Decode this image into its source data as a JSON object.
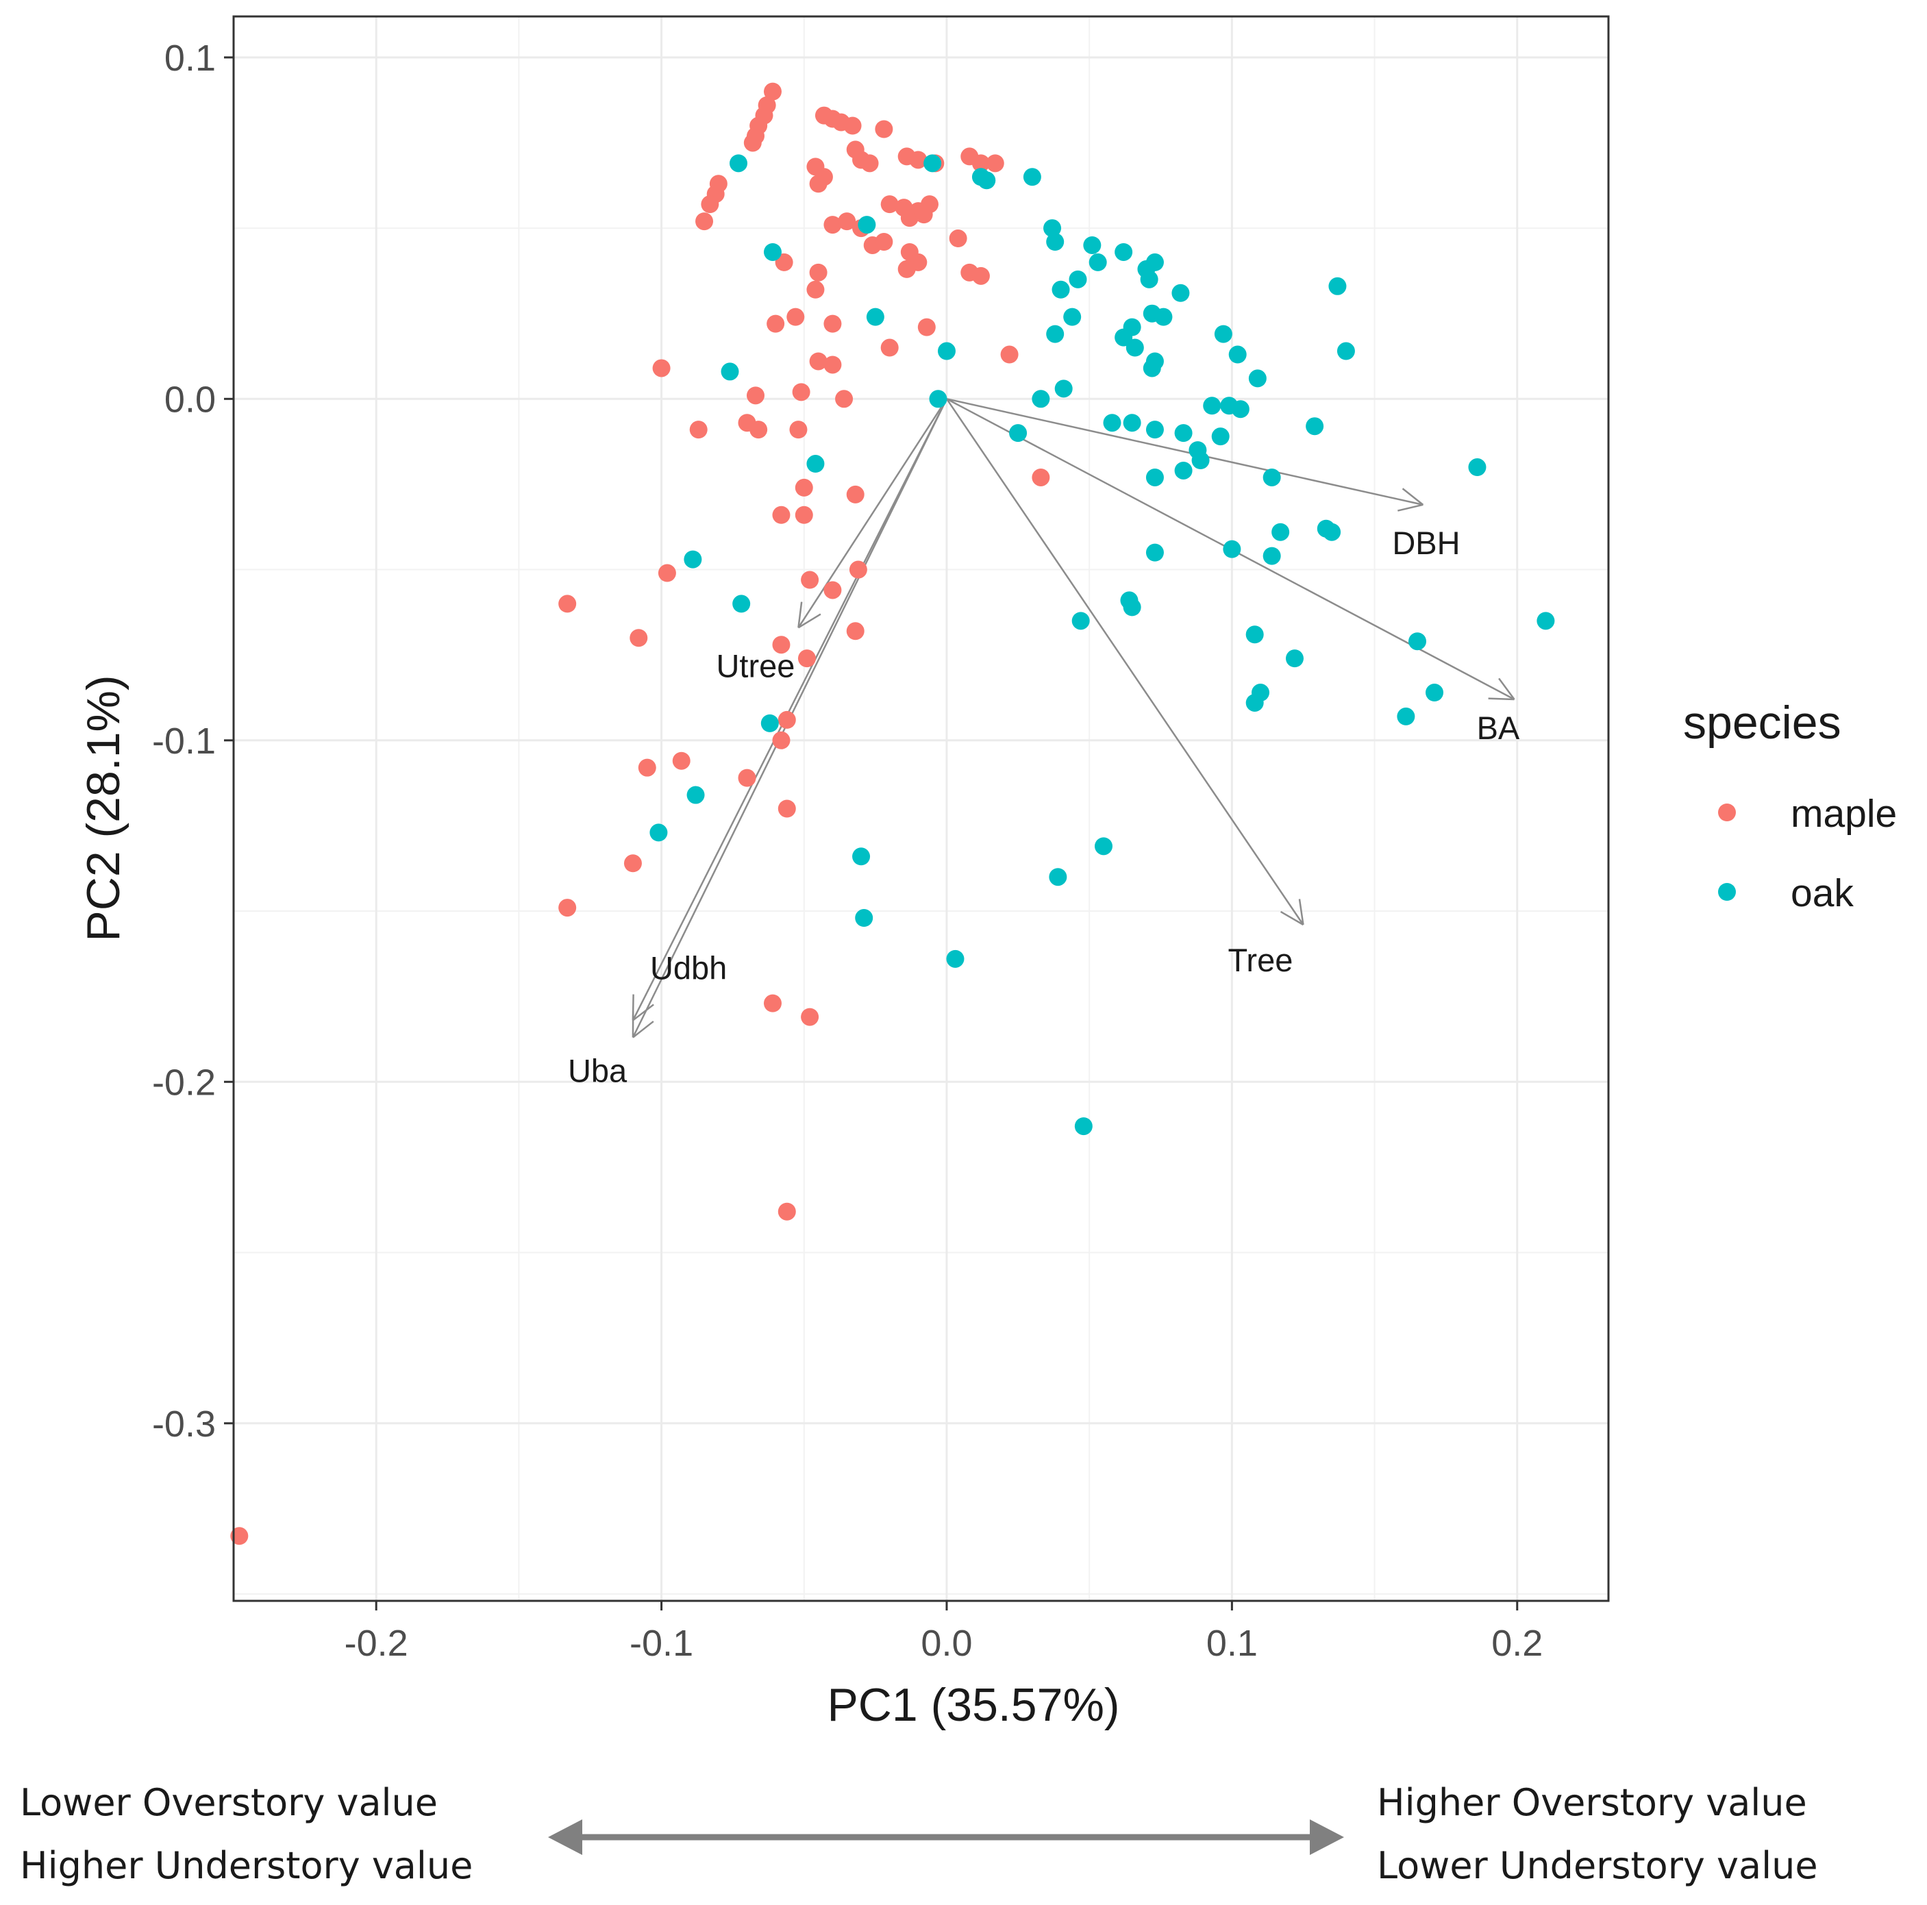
{
  "chart_data": {
    "type": "scatter",
    "subtype": "pca-biplot",
    "xlabel": "PC1 (35.57%)",
    "ylabel": "PC2 (28.1%)",
    "xlim": [
      -0.25,
      0.232
    ],
    "ylim": [
      -0.352,
      0.112
    ],
    "xticks": [
      -0.2,
      -0.1,
      0.0,
      0.1,
      0.2
    ],
    "xtick_labels": [
      "-0.2",
      "-0.1",
      "0.0",
      "0.1",
      "0.2"
    ],
    "yticks": [
      0.1,
      0.0,
      -0.1,
      -0.2,
      -0.3
    ],
    "ytick_labels": [
      "0.1",
      "0.0",
      "-0.1",
      "-0.2",
      "-0.3"
    ],
    "grid": true,
    "legend": {
      "title": "species",
      "placement": "right",
      "entries": [
        {
          "label": "maple",
          "color": "#F8766D"
        },
        {
          "label": "oak",
          "color": "#00BFC4"
        }
      ]
    },
    "series": [
      {
        "name": "maple",
        "color": "#F8766D",
        "points": [
          [
            -0.061,
            0.09
          ],
          [
            -0.063,
            0.086
          ],
          [
            -0.064,
            0.083
          ],
          [
            -0.066,
            0.08
          ],
          [
            -0.067,
            0.077
          ],
          [
            -0.068,
            0.075
          ],
          [
            -0.08,
            0.063
          ],
          [
            -0.081,
            0.06
          ],
          [
            -0.083,
            0.057
          ],
          [
            -0.085,
            0.052
          ],
          [
            -0.043,
            0.083
          ],
          [
            -0.04,
            0.082
          ],
          [
            -0.037,
            0.081
          ],
          [
            -0.033,
            0.08
          ],
          [
            -0.022,
            0.079
          ],
          [
            -0.032,
            0.073
          ],
          [
            -0.03,
            0.07
          ],
          [
            -0.027,
            0.069
          ],
          [
            -0.014,
            0.071
          ],
          [
            -0.01,
            0.07
          ],
          [
            -0.004,
            0.069
          ],
          [
            0.008,
            0.071
          ],
          [
            0.012,
            0.069
          ],
          [
            0.017,
            0.069
          ],
          [
            -0.046,
            0.068
          ],
          [
            -0.043,
            0.065
          ],
          [
            -0.045,
            0.063
          ],
          [
            -0.02,
            0.057
          ],
          [
            -0.015,
            0.056
          ],
          [
            -0.01,
            0.055
          ],
          [
            -0.006,
            0.057
          ],
          [
            -0.013,
            0.053
          ],
          [
            -0.008,
            0.054
          ],
          [
            -0.04,
            0.051
          ],
          [
            -0.035,
            0.052
          ],
          [
            -0.03,
            0.05
          ],
          [
            -0.026,
            0.045
          ],
          [
            -0.022,
            0.046
          ],
          [
            -0.013,
            0.043
          ],
          [
            -0.01,
            0.04
          ],
          [
            -0.014,
            0.038
          ],
          [
            0.004,
            0.047
          ],
          [
            0.008,
            0.037
          ],
          [
            0.012,
            0.036
          ],
          [
            -0.057,
            0.04
          ],
          [
            -0.045,
            0.037
          ],
          [
            -0.046,
            0.032
          ],
          [
            -0.06,
            0.022
          ],
          [
            -0.053,
            0.024
          ],
          [
            -0.04,
            0.022
          ],
          [
            -0.02,
            0.015
          ],
          [
            -0.007,
            0.021
          ],
          [
            0.022,
            0.013
          ],
          [
            -0.045,
            0.011
          ],
          [
            -0.04,
            0.01
          ],
          [
            -0.1,
            0.009
          ],
          [
            -0.067,
            0.001
          ],
          [
            -0.051,
            0.002
          ],
          [
            -0.036,
            0.0
          ],
          [
            -0.087,
            -0.009
          ],
          [
            -0.07,
            -0.007
          ],
          [
            -0.066,
            -0.009
          ],
          [
            -0.052,
            -0.009
          ],
          [
            -0.05,
            -0.026
          ],
          [
            -0.058,
            -0.034
          ],
          [
            -0.05,
            -0.034
          ],
          [
            -0.032,
            -0.028
          ],
          [
            0.033,
            -0.023
          ],
          [
            -0.098,
            -0.051
          ],
          [
            -0.048,
            -0.053
          ],
          [
            -0.04,
            -0.056
          ],
          [
            -0.031,
            -0.05
          ],
          [
            -0.133,
            -0.06
          ],
          [
            -0.108,
            -0.07
          ],
          [
            -0.058,
            -0.072
          ],
          [
            -0.049,
            -0.076
          ],
          [
            -0.032,
            -0.068
          ],
          [
            -0.056,
            -0.094
          ],
          [
            -0.058,
            -0.1
          ],
          [
            -0.093,
            -0.106
          ],
          [
            -0.105,
            -0.108
          ],
          [
            -0.07,
            -0.111
          ],
          [
            -0.056,
            -0.12
          ],
          [
            -0.11,
            -0.136
          ],
          [
            -0.133,
            -0.149
          ],
          [
            -0.061,
            -0.177
          ],
          [
            -0.048,
            -0.181
          ],
          [
            -0.056,
            -0.238
          ],
          [
            -0.248,
            -0.333
          ]
        ]
      },
      {
        "name": "oak",
        "color": "#00BFC4",
        "points": [
          [
            -0.073,
            0.069
          ],
          [
            -0.005,
            0.069
          ],
          [
            0.012,
            0.065
          ],
          [
            0.014,
            0.064
          ],
          [
            0.03,
            0.065
          ],
          [
            -0.028,
            0.051
          ],
          [
            0.037,
            0.05
          ],
          [
            0.038,
            0.046
          ],
          [
            -0.061,
            0.043
          ],
          [
            0.051,
            0.045
          ],
          [
            0.062,
            0.043
          ],
          [
            0.053,
            0.04
          ],
          [
            0.07,
            0.038
          ],
          [
            0.073,
            0.04
          ],
          [
            0.071,
            0.035
          ],
          [
            0.046,
            0.035
          ],
          [
            0.04,
            0.032
          ],
          [
            0.137,
            0.033
          ],
          [
            0.082,
            0.031
          ],
          [
            -0.025,
            0.024
          ],
          [
            0.072,
            0.025
          ],
          [
            0.065,
            0.021
          ],
          [
            0.076,
            0.024
          ],
          [
            0.044,
            0.024
          ],
          [
            0.038,
            0.019
          ],
          [
            0.062,
            0.018
          ],
          [
            0.097,
            0.019
          ],
          [
            0.0,
            0.014
          ],
          [
            0.066,
            0.015
          ],
          [
            0.102,
            0.013
          ],
          [
            0.14,
            0.014
          ],
          [
            0.073,
            0.011
          ],
          [
            0.072,
            0.009
          ],
          [
            0.109,
            0.006
          ],
          [
            -0.076,
            0.008
          ],
          [
            0.041,
            0.003
          ],
          [
            0.033,
            0.0
          ],
          [
            -0.003,
            0.0
          ],
          [
            0.093,
            -0.002
          ],
          [
            0.099,
            -0.002
          ],
          [
            0.103,
            -0.003
          ],
          [
            0.058,
            -0.007
          ],
          [
            0.065,
            -0.007
          ],
          [
            0.073,
            -0.009
          ],
          [
            0.083,
            -0.01
          ],
          [
            0.096,
            -0.011
          ],
          [
            0.129,
            -0.008
          ],
          [
            0.025,
            -0.01
          ],
          [
            0.088,
            -0.015
          ],
          [
            0.089,
            -0.018
          ],
          [
            0.083,
            -0.021
          ],
          [
            0.073,
            -0.023
          ],
          [
            0.114,
            -0.023
          ],
          [
            -0.046,
            -0.019
          ],
          [
            0.186,
            -0.02
          ],
          [
            0.117,
            -0.039
          ],
          [
            0.133,
            -0.038
          ],
          [
            0.135,
            -0.039
          ],
          [
            0.1,
            -0.044
          ],
          [
            0.114,
            -0.046
          ],
          [
            0.073,
            -0.045
          ],
          [
            -0.089,
            -0.047
          ],
          [
            0.064,
            -0.059
          ],
          [
            0.065,
            -0.061
          ],
          [
            -0.072,
            -0.06
          ],
          [
            0.047,
            -0.065
          ],
          [
            0.108,
            -0.069
          ],
          [
            0.165,
            -0.071
          ],
          [
            0.21,
            -0.065
          ],
          [
            0.122,
            -0.076
          ],
          [
            0.11,
            -0.086
          ],
          [
            0.108,
            -0.089
          ],
          [
            0.171,
            -0.086
          ],
          [
            0.161,
            -0.093
          ],
          [
            -0.062,
            -0.095
          ],
          [
            -0.088,
            -0.116
          ],
          [
            -0.101,
            -0.127
          ],
          [
            0.055,
            -0.131
          ],
          [
            0.039,
            -0.14
          ],
          [
            -0.03,
            -0.134
          ],
          [
            -0.029,
            -0.152
          ],
          [
            0.003,
            -0.164
          ],
          [
            0.048,
            -0.213
          ]
        ]
      }
    ],
    "loadings": [
      {
        "label": "DBH",
        "x": 0.167,
        "y": -0.031
      },
      {
        "label": "BA",
        "x": 0.199,
        "y": -0.088
      },
      {
        "label": "Tree",
        "x": 0.125,
        "y": -0.154
      },
      {
        "label": "Utree",
        "x": -0.052,
        "y": -0.067
      },
      {
        "label": "Udbh",
        "x": -0.11,
        "y": -0.182
      },
      {
        "label": "Uba",
        "x": -0.11,
        "y": -0.187
      }
    ]
  },
  "annotation": {
    "left_line1": "Lower Overstory value",
    "left_line2": "Higher Understory value",
    "right_line1": "Higher Overstory value",
    "right_line2": "Lower Understory value",
    "arrow_color": "#808080"
  }
}
